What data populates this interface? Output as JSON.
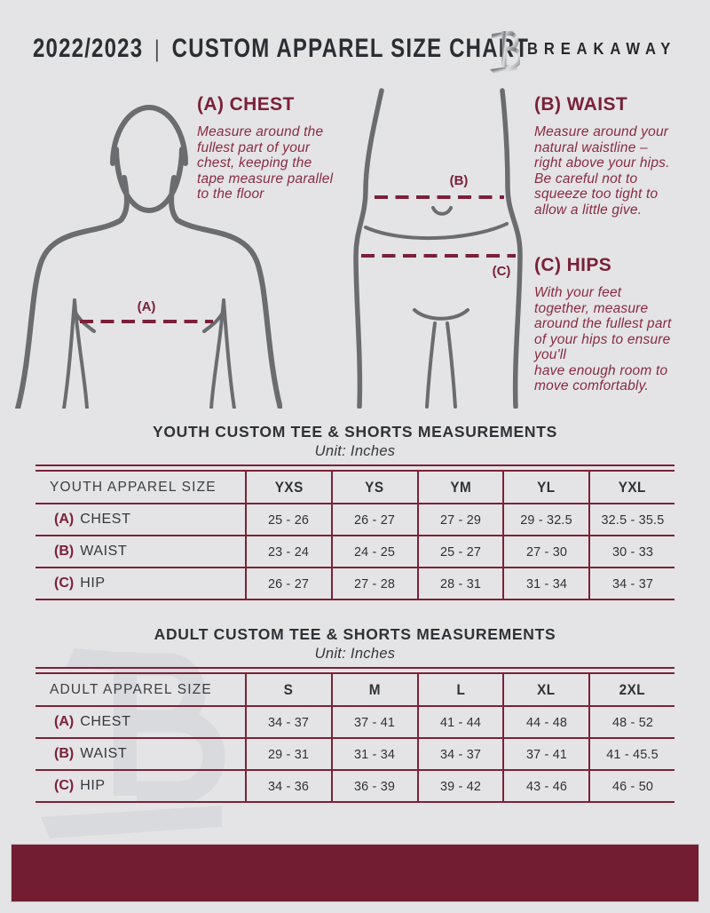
{
  "page": {
    "background": "#e4e4e6",
    "accent_maroon": "#7b2039",
    "footer_maroon": "#731d31",
    "figure_gray": "#6a6c6f"
  },
  "header": {
    "year": "2022/2023",
    "divider": "|",
    "title": "CUSTOM APPAREL SIZE CHART",
    "brand": "BREAKAWAY"
  },
  "guide": {
    "chest": {
      "heading": "(A) CHEST",
      "marker": "(A)",
      "body": "Measure around the\nfullest part of your\nchest, keeping the\ntape measure parallel\nto the floor"
    },
    "waist": {
      "heading": "(B) WAIST",
      "marker": "(B)",
      "body": "Measure around your\nnatural waistline –\nright above your hips.\nBe careful not to\nsqueeze too tight to\nallow a little give."
    },
    "hips": {
      "heading": "(C) HIPS",
      "marker": "(C)",
      "body": "With your feet\ntogether, measure\naround the fullest part\nof your hips to ensure\nyou'll\nhave enough room to\nmove comfortably."
    }
  },
  "youth_table": {
    "title": "YOUTH CUSTOM TEE & SHORTS MEASUREMENTS",
    "subtitle": "Unit: Inches",
    "header": [
      "YOUTH APPAREL SIZE",
      "YXS",
      "YS",
      "YM",
      "YL",
      "YXL"
    ],
    "rows": [
      {
        "key": "(A)",
        "label": "CHEST",
        "values": [
          "25 - 26",
          "26 - 27",
          "27 - 29",
          "29 - 32.5",
          "32.5 - 35.5"
        ]
      },
      {
        "key": "(B)",
        "label": "WAIST",
        "values": [
          "23 - 24",
          "24 - 25",
          "25 - 27",
          "27 - 30",
          "30 - 33"
        ]
      },
      {
        "key": "(C)",
        "label": "HIP",
        "values": [
          "26 - 27",
          "27 - 28",
          "28 - 31",
          "31 - 34",
          "34 - 37"
        ]
      }
    ]
  },
  "adult_table": {
    "title": "ADULT CUSTOM TEE & SHORTS MEASUREMENTS",
    "subtitle": "Unit: Inches",
    "header": [
      "ADULT APPAREL SIZE",
      "S",
      "M",
      "L",
      "XL",
      "2XL"
    ],
    "rows": [
      {
        "key": "(A)",
        "label": "CHEST",
        "values": [
          "34 - 37",
          "37 - 41",
          "41 - 44",
          "44 - 48",
          "48 - 52"
        ]
      },
      {
        "key": "(B)",
        "label": "WAIST",
        "values": [
          "29 - 31",
          "31 - 34",
          "34 - 37",
          "37 - 41",
          "41 - 45.5"
        ]
      },
      {
        "key": "(C)",
        "label": "HIP",
        "values": [
          "34 - 36",
          "36 - 39",
          "39 - 42",
          "43 - 46",
          "46 - 50"
        ]
      }
    ]
  }
}
